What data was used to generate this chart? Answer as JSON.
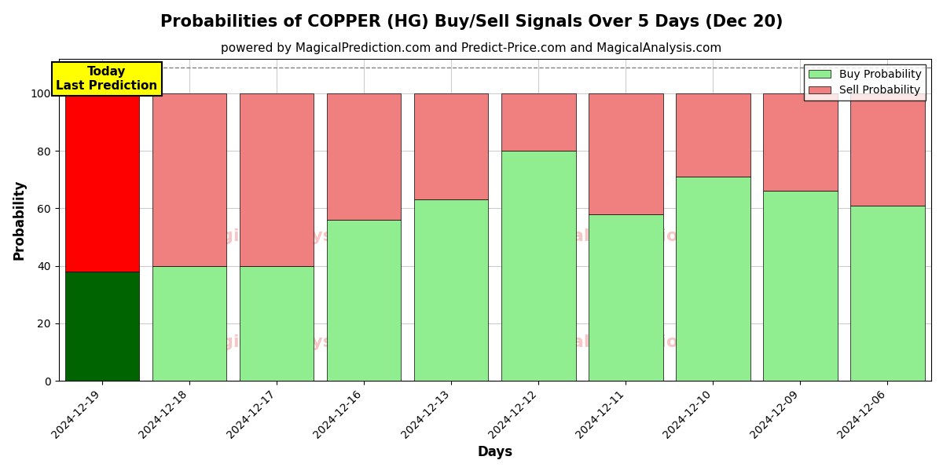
{
  "title": "Probabilities of COPPER (HG) Buy/Sell Signals Over 5 Days (Dec 20)",
  "subtitle": "powered by MagicalPrediction.com and Predict-Price.com and MagicalAnalysis.com",
  "xlabel": "Days",
  "ylabel": "Probability",
  "categories": [
    "2024-12-19",
    "2024-12-18",
    "2024-12-17",
    "2024-12-16",
    "2024-12-13",
    "2024-12-12",
    "2024-12-11",
    "2024-12-10",
    "2024-12-09",
    "2024-12-06"
  ],
  "buy_values": [
    38,
    40,
    40,
    56,
    63,
    80,
    58,
    71,
    66,
    61
  ],
  "sell_values": [
    62,
    60,
    60,
    44,
    37,
    20,
    42,
    29,
    34,
    39
  ],
  "today_buy_color": "#006400",
  "today_sell_color": "#FF0000",
  "other_buy_color": "#90EE90",
  "other_sell_color": "#F08080",
  "today_annotation_text": "Today\nLast Prediction",
  "today_annotation_bg": "#FFFF00",
  "legend_buy_label": "Buy Probability",
  "legend_sell_label": "Sell Probability",
  "ylim": [
    0,
    112
  ],
  "yticks": [
    0,
    20,
    40,
    60,
    80,
    100
  ],
  "dashed_line_y": 109,
  "bg_color": "#ffffff",
  "grid_color": "#cccccc",
  "title_fontsize": 15,
  "subtitle_fontsize": 11,
  "bar_width": 0.85
}
